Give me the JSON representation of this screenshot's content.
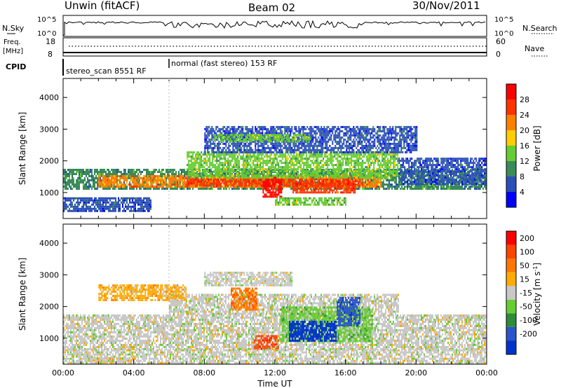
{
  "header": {
    "site": "Unwin (fitACF)",
    "beam": "Beam 02",
    "date": "30/Nov/2011"
  },
  "aux_panels": {
    "nsky": {
      "label": "N.Sky",
      "ticks": [
        "10^5",
        "10^0"
      ]
    },
    "nsearch": {
      "label": "N.Search",
      "ticks": [
        "10^5",
        "10^0"
      ]
    },
    "freq": {
      "label_line1": "Freq.",
      "label_line2": "[MHz]",
      "ticks": [
        "18",
        "8"
      ]
    },
    "nave": {
      "label": "Nave",
      "ticks": [
        "60",
        "0"
      ]
    },
    "cpid": {
      "label": "CPID",
      "modes": [
        {
          "text": "stereo_scan 8551 RF",
          "start_hour": 0
        },
        {
          "text": "normal (fast stereo) 153 RF",
          "start_hour": 6
        }
      ]
    }
  },
  "chart_data": [
    {
      "type": "heatmap",
      "quantity": "Power",
      "ylabel": "Slant Range [km]",
      "xlabel": "",
      "xlim": [
        0,
        24
      ],
      "ylim": [
        180,
        4600
      ],
      "yticks": [
        1000,
        2000,
        3000,
        4000
      ],
      "colorbar": {
        "label": "Power [dB]",
        "ticks": [
          "4",
          "8",
          "12",
          "16",
          "20",
          "24",
          "28"
        ],
        "colors": [
          "#0000ff",
          "#2b4fb8",
          "#3a8a5a",
          "#66cc33",
          "#ffcc00",
          "#ff8000",
          "#ff3300",
          "#ff0000"
        ]
      },
      "bands": [
        {
          "x0": 0,
          "x1": 24,
          "y0": 1150,
          "y1": 1750,
          "level": 2
        },
        {
          "x0": 2,
          "x1": 18,
          "y0": 1200,
          "y1": 1550,
          "level": 5
        },
        {
          "x0": 7,
          "x1": 17,
          "y0": 1250,
          "y1": 1450,
          "level": 6
        },
        {
          "x0": 11.3,
          "x1": 12.4,
          "y0": 850,
          "y1": 1500,
          "level": 7
        },
        {
          "x0": 13,
          "x1": 16.5,
          "y0": 1000,
          "y1": 1300,
          "level": 6
        },
        {
          "x0": 7,
          "x1": 19,
          "y0": 1500,
          "y1": 2300,
          "level": 3
        },
        {
          "x0": 8,
          "x1": 20,
          "y0": 2300,
          "y1": 3100,
          "level": 1
        },
        {
          "x0": 8.5,
          "x1": 14,
          "y0": 2600,
          "y1": 2850,
          "level": 3
        },
        {
          "x0": 0,
          "x1": 5,
          "y0": 400,
          "y1": 850,
          "level": 1
        },
        {
          "x0": 12,
          "x1": 16,
          "y0": 600,
          "y1": 850,
          "level": 3
        },
        {
          "x0": 19,
          "x1": 24,
          "y0": 1300,
          "y1": 2100,
          "level": 1
        }
      ]
    },
    {
      "type": "heatmap",
      "quantity": "Velocity",
      "ylabel": "Slant Range [km]",
      "xlabel": "Time UT",
      "xlim": [
        0,
        24
      ],
      "ylim": [
        180,
        4600
      ],
      "yticks": [
        1000,
        2000,
        3000,
        4000
      ],
      "xticks": [
        "00:00",
        "04:00",
        "08:00",
        "12:00",
        "16:00",
        "20:00",
        "00:00"
      ],
      "colorbar": {
        "label": "Velocity [m s-1]",
        "ticks": [
          "200",
          "100",
          "50",
          "15",
          "-15",
          "-50",
          "-100",
          "-200"
        ],
        "colors": [
          "#0033cc",
          "#2a55cc",
          "#2e8b3a",
          "#66cc33",
          "#c8c8c8",
          "#ffaa00",
          "#ff7700",
          "#ff4400",
          "#ff0000"
        ]
      },
      "bands": [
        {
          "x0": 0,
          "x1": 24,
          "y0": 650,
          "y1": 1750,
          "level": 4
        },
        {
          "x0": 6,
          "x1": 19,
          "y0": 1750,
          "y1": 2400,
          "level": 4
        },
        {
          "x0": 12.3,
          "x1": 17.5,
          "y0": 900,
          "y1": 2000,
          "level": 3
        },
        {
          "x0": 12.8,
          "x1": 15.5,
          "y0": 950,
          "y1": 1550,
          "level": 0
        },
        {
          "x0": 15.5,
          "x1": 16.8,
          "y0": 1400,
          "y1": 2300,
          "level": 1
        },
        {
          "x0": 10.8,
          "x1": 12.2,
          "y0": 650,
          "y1": 1100,
          "level": 7
        },
        {
          "x0": 9.5,
          "x1": 11,
          "y0": 1900,
          "y1": 2600,
          "level": 6
        },
        {
          "x0": 2,
          "x1": 7,
          "y0": 2200,
          "y1": 2700,
          "level": 5
        },
        {
          "x0": 8,
          "x1": 13,
          "y0": 2700,
          "y1": 3100,
          "level": 4
        },
        {
          "x0": 1.5,
          "x1": 4,
          "y0": 250,
          "y1": 400,
          "level": 5
        },
        {
          "x0": 0,
          "x1": 24,
          "y0": 250,
          "y1": 650,
          "level": 4
        }
      ]
    }
  ]
}
